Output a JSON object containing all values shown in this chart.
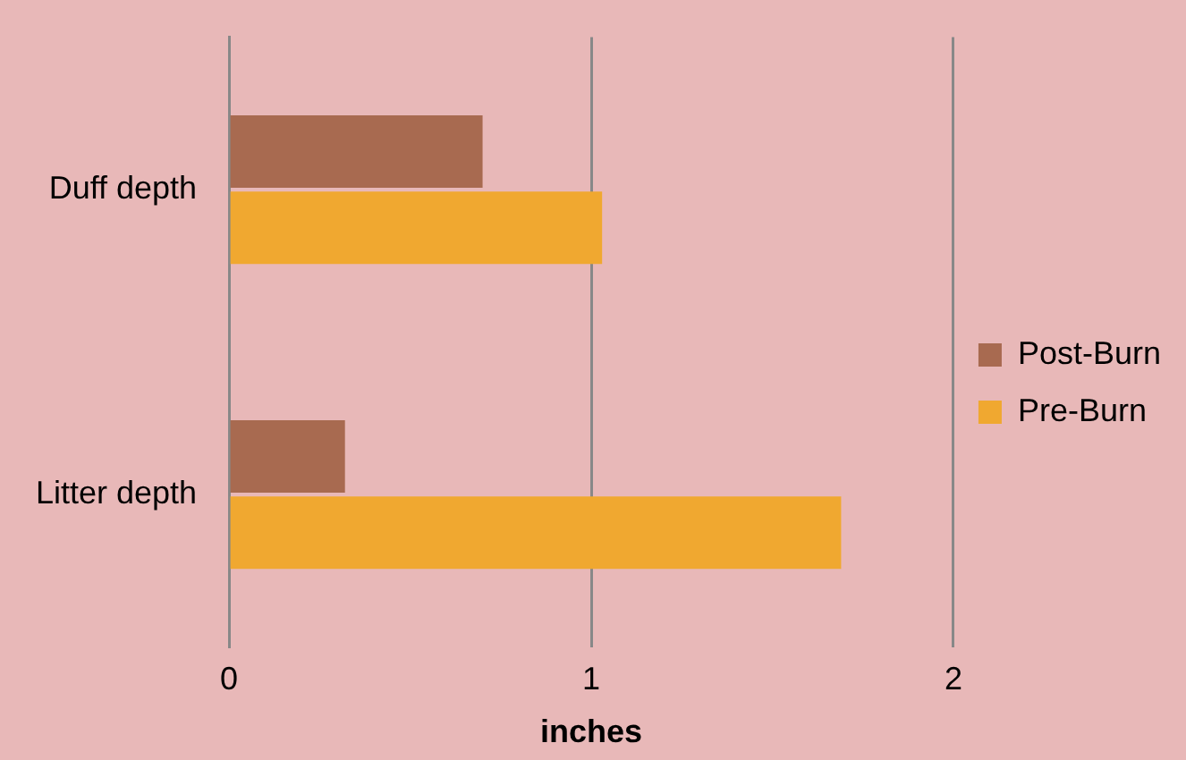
{
  "chart_data": {
    "type": "bar",
    "orientation": "horizontal",
    "categories": [
      "Duff depth",
      "Litter depth"
    ],
    "series": [
      {
        "name": "Post-Burn",
        "color": "#a86a50",
        "values": [
          0.7,
          0.32
        ]
      },
      {
        "name": "Pre-Burn",
        "color": "#f0a830",
        "values": [
          1.03,
          1.69
        ]
      }
    ],
    "xlabel": "inches",
    "xlim": [
      0,
      2
    ],
    "xticks": [
      0,
      1,
      2
    ],
    "grid": "x",
    "legend": "right"
  }
}
